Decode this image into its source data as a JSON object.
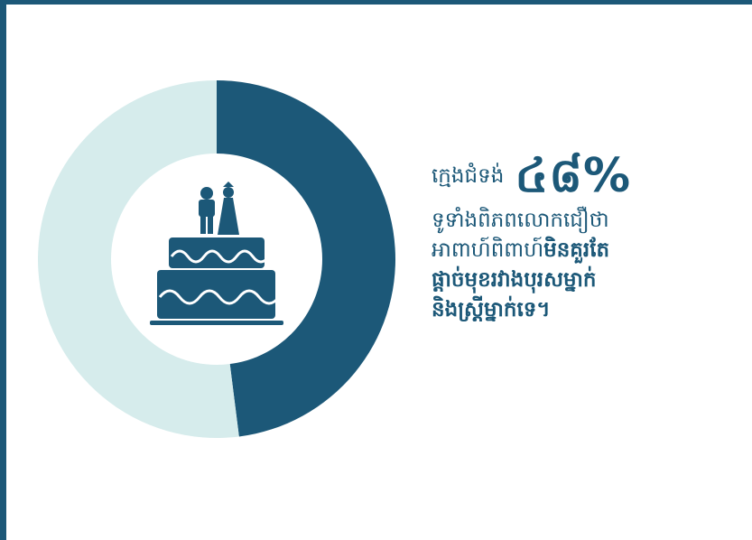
{
  "colors": {
    "primary": "#1c5878",
    "secondary": "#d6ecec",
    "background": "#ffffff"
  },
  "chart_data": {
    "type": "pie",
    "style": "donut",
    "slices": [
      {
        "label": "",
        "value": 48,
        "color": "#1c5878"
      },
      {
        "label": "",
        "value": 52,
        "color": "#d6ecec"
      }
    ],
    "center_icon": "wedding-cake-icon"
  },
  "text": {
    "intro": "ក្មេងជំទង់",
    "stat": "៤៨%",
    "line2": "ទូទាំងពិភពលោកជឿថា",
    "line3_regular": "អាពាហ៍ពិពាហ៍",
    "line3_bold": "មិនគួរតែ",
    "line4": "ផ្ដាច់មុខរវាងបុរសម្នាក់",
    "line5": "និងស្ត្រីម្នាក់ទេ។"
  }
}
